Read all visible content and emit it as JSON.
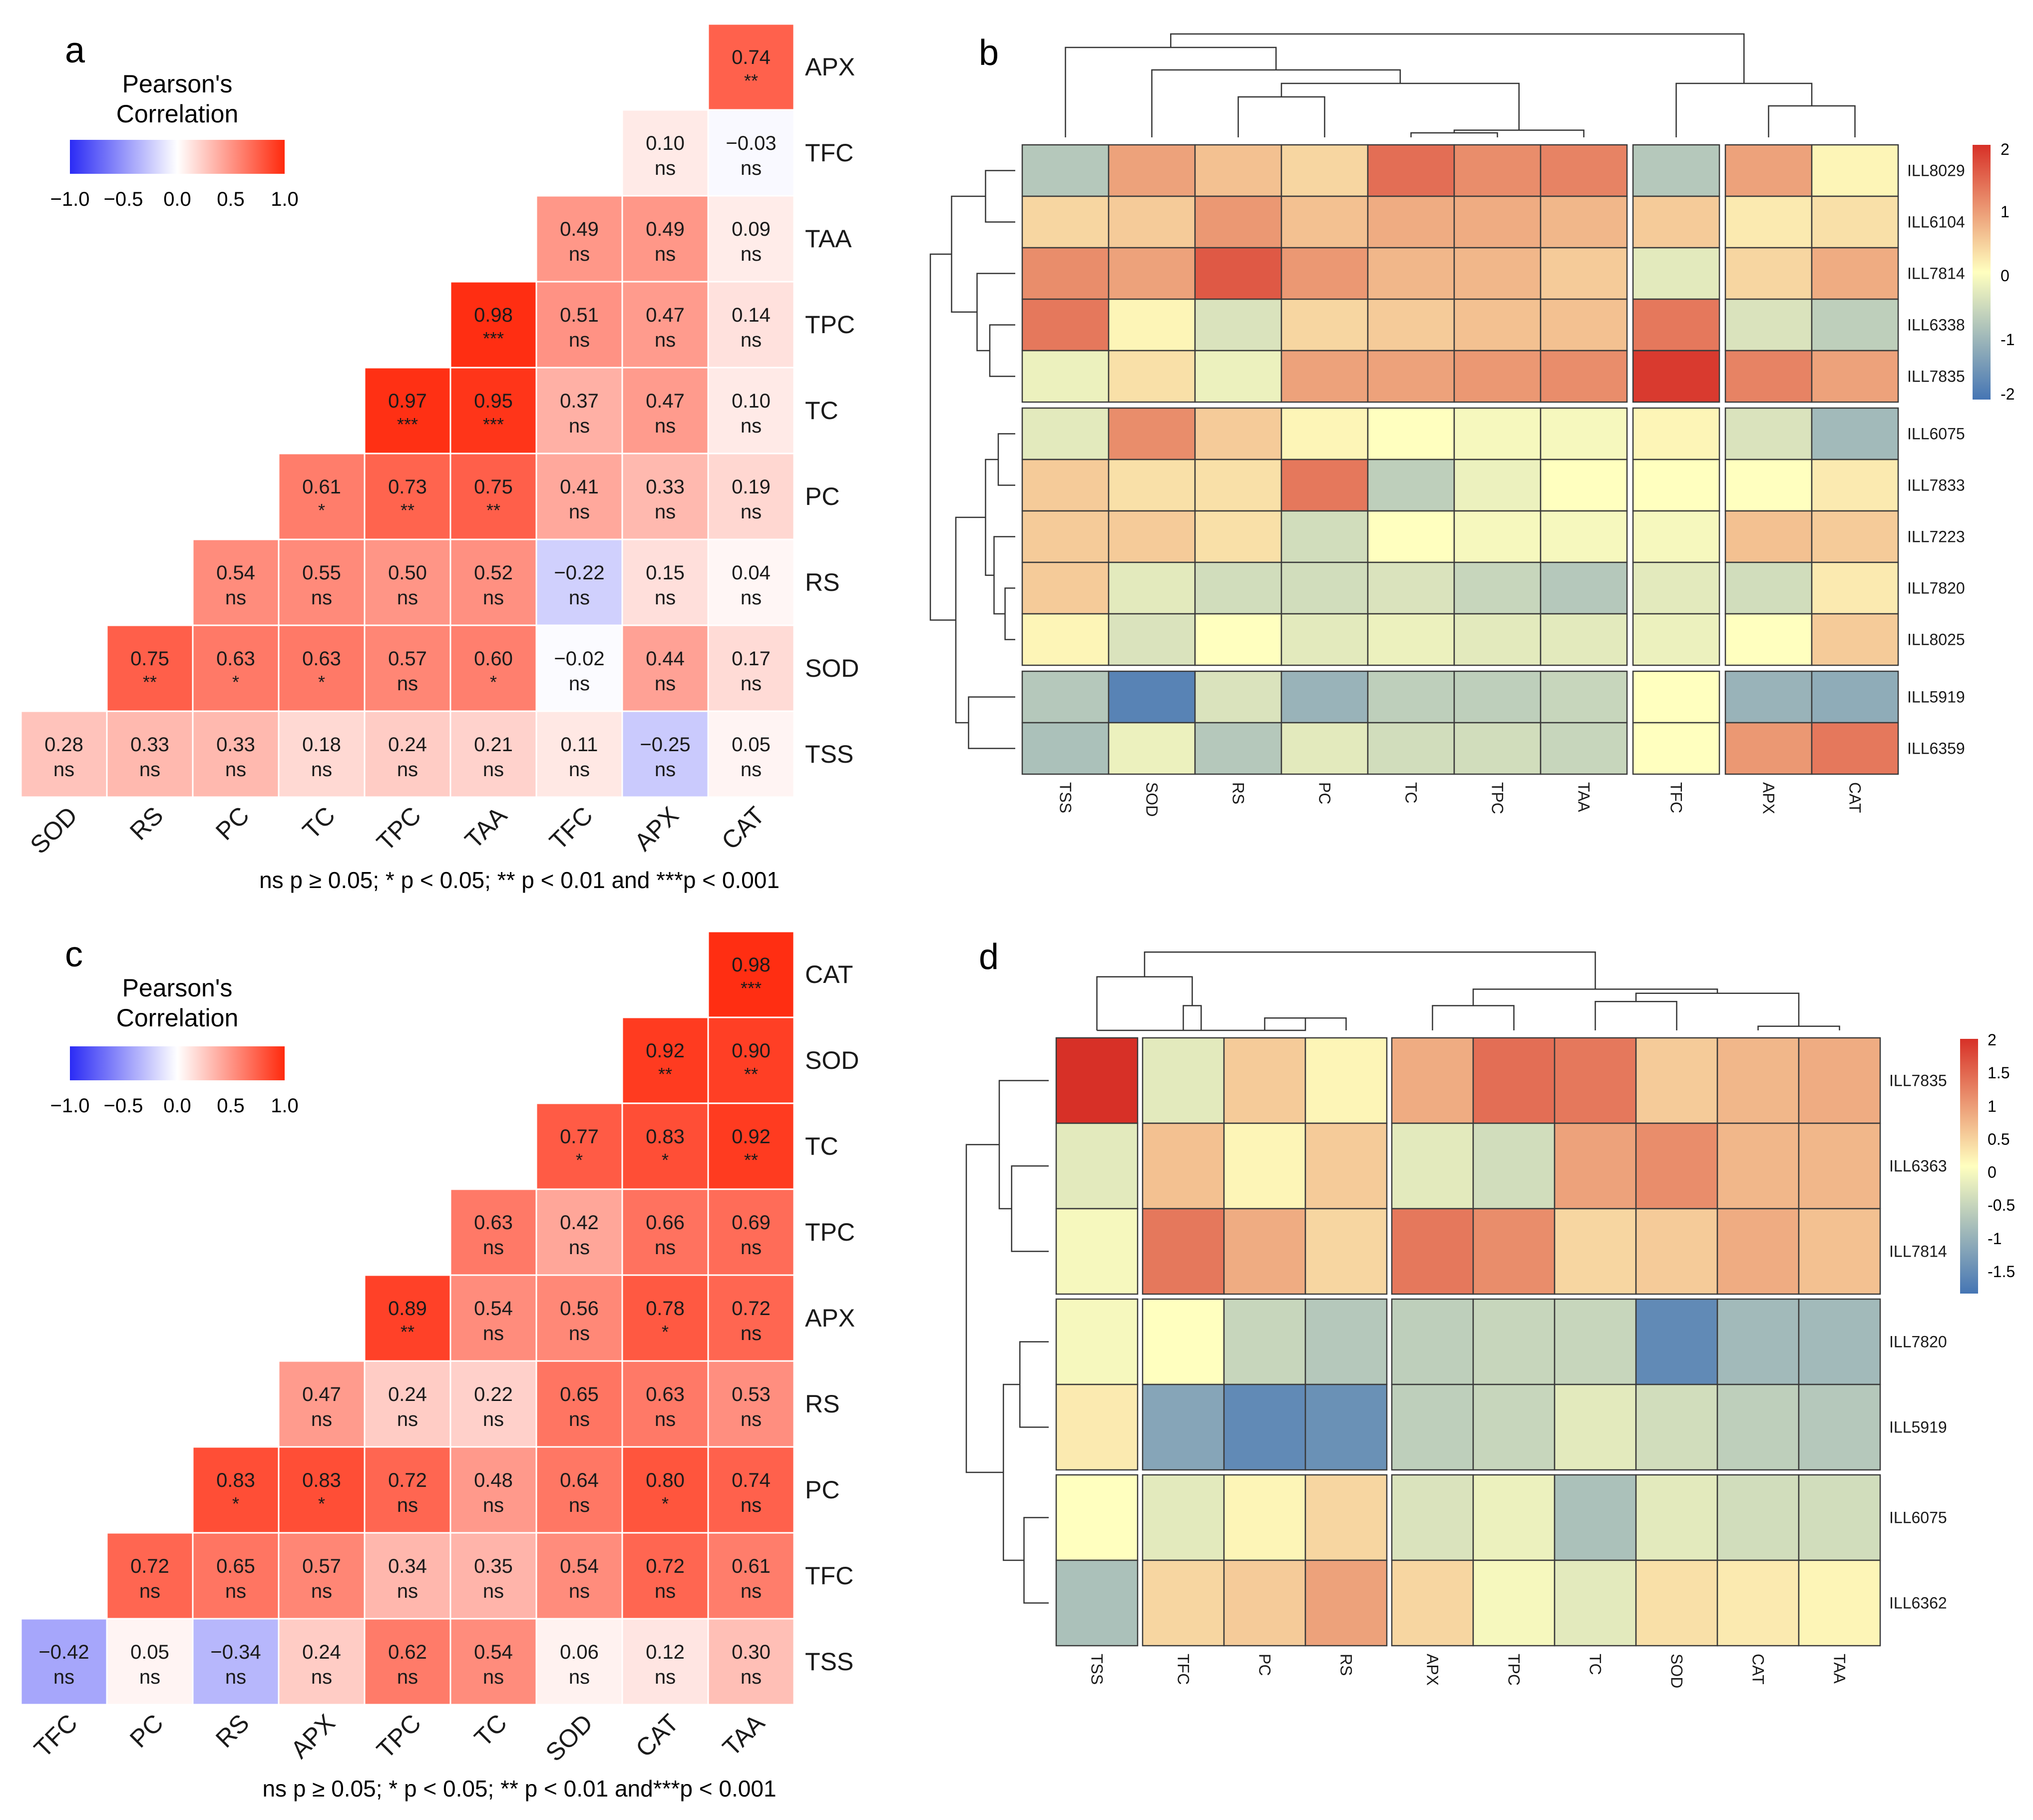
{
  "panels": {
    "a": {
      "label": "a",
      "legend_title": [
        "Pearson's",
        "Correlation"
      ],
      "legend_ticks": [
        "−1.0",
        "−0.5",
        "0.0",
        "0.5",
        "1.0"
      ],
      "footnote": "ns p ≥ 0.05; * p < 0.05; ** p < 0.01 and ***p < 0.001"
    },
    "b": {
      "label": "b",
      "scale_ticks": [
        "2",
        "1",
        "0",
        "-1",
        "-2"
      ]
    },
    "c": {
      "label": "c",
      "legend_title": [
        "Pearson's",
        "Correlation"
      ],
      "legend_ticks": [
        "−1.0",
        "−0.5",
        "0.0",
        "0.5",
        "1.0"
      ],
      "footnote": "ns p ≥ 0.05; * p < 0.05; ** p < 0.01 and***p < 0.001"
    },
    "d": {
      "label": "d",
      "scale_ticks": [
        "2",
        "1.5",
        "1",
        "0.5",
        "0",
        "-0.5",
        "-1",
        "-1.5"
      ]
    }
  },
  "colors": {
    "neg": "#2b2bf5",
    "mid": "#ffffff",
    "pos": "#ff2a0d",
    "hm_low": "#4575b4",
    "hm_mid": "#ffffbf",
    "hm_high": "#d73027",
    "grid": "#000000"
  },
  "chart_data": [
    {
      "type": "heatmap",
      "id": "a",
      "title": "Pearson's Correlation",
      "x_labels": [
        "SOD",
        "RS",
        "PC",
        "TC",
        "TPC",
        "TAA",
        "TFC",
        "APX",
        "CAT"
      ],
      "y_labels": [
        "APX",
        "TFC",
        "TAA",
        "TPC",
        "TC",
        "PC",
        "RS",
        "SOD",
        "TSS"
      ],
      "cells": [
        [
          null,
          null,
          null,
          null,
          null,
          null,
          null,
          null,
          {
            "r": 0.74,
            "s": "**"
          }
        ],
        [
          null,
          null,
          null,
          null,
          null,
          null,
          null,
          {
            "r": 0.1,
            "s": "ns"
          },
          {
            "r": -0.03,
            "s": "ns"
          }
        ],
        [
          null,
          null,
          null,
          null,
          null,
          null,
          {
            "r": 0.49,
            "s": "ns"
          },
          {
            "r": 0.49,
            "s": "ns"
          },
          {
            "r": 0.09,
            "s": "ns"
          }
        ],
        [
          null,
          null,
          null,
          null,
          null,
          {
            "r": 0.98,
            "s": "***"
          },
          {
            "r": 0.51,
            "s": "ns"
          },
          {
            "r": 0.47,
            "s": "ns"
          },
          {
            "r": 0.14,
            "s": "ns"
          }
        ],
        [
          null,
          null,
          null,
          null,
          {
            "r": 0.97,
            "s": "***"
          },
          {
            "r": 0.95,
            "s": "***"
          },
          {
            "r": 0.37,
            "s": "ns"
          },
          {
            "r": 0.47,
            "s": "ns"
          },
          {
            "r": 0.1,
            "s": "ns"
          }
        ],
        [
          null,
          null,
          null,
          {
            "r": 0.61,
            "s": "*"
          },
          {
            "r": 0.73,
            "s": "**"
          },
          {
            "r": 0.75,
            "s": "**"
          },
          {
            "r": 0.41,
            "s": "ns"
          },
          {
            "r": 0.33,
            "s": "ns"
          },
          {
            "r": 0.19,
            "s": "ns"
          }
        ],
        [
          null,
          null,
          {
            "r": 0.54,
            "s": "ns"
          },
          {
            "r": 0.55,
            "s": "ns"
          },
          {
            "r": 0.5,
            "s": "ns"
          },
          {
            "r": 0.52,
            "s": "ns"
          },
          {
            "r": -0.22,
            "s": "ns"
          },
          {
            "r": 0.15,
            "s": "ns"
          },
          {
            "r": 0.04,
            "s": "ns"
          }
        ],
        [
          null,
          {
            "r": 0.75,
            "s": "**"
          },
          {
            "r": 0.63,
            "s": "*"
          },
          {
            "r": 0.63,
            "s": "*"
          },
          {
            "r": 0.57,
            "s": "ns"
          },
          {
            "r": 0.6,
            "s": "*"
          },
          {
            "r": -0.02,
            "s": "ns"
          },
          {
            "r": 0.44,
            "s": "ns"
          },
          {
            "r": 0.17,
            "s": "ns"
          }
        ],
        [
          {
            "r": 0.28,
            "s": "ns"
          },
          {
            "r": 0.33,
            "s": "ns"
          },
          {
            "r": 0.33,
            "s": "ns"
          },
          {
            "r": 0.18,
            "s": "ns"
          },
          {
            "r": 0.24,
            "s": "ns"
          },
          {
            "r": 0.21,
            "s": "ns"
          },
          {
            "r": 0.11,
            "s": "ns"
          },
          {
            "r": -0.25,
            "s": "ns"
          },
          {
            "r": 0.05,
            "s": "ns"
          }
        ]
      ],
      "color_range": [
        -1.0,
        1.0
      ]
    },
    {
      "type": "heatmap",
      "id": "b",
      "x_labels": [
        "TSS",
        "SOD",
        "RS",
        "PC",
        "TC",
        "TPC",
        "TAA",
        "TFC",
        "APX",
        "CAT"
      ],
      "y_labels": [
        "ILL8029",
        "ILL6104",
        "ILL7814",
        "ILL6338",
        "ILL7835",
        "ILL6075",
        "ILL7833",
        "ILL7223",
        "ILL7820",
        "ILL8025",
        "ILL5919",
        "ILL6359"
      ],
      "values": [
        [
          -0.8,
          0.9,
          0.6,
          0.4,
          1.4,
          1.1,
          1.2,
          -0.8,
          0.9,
          0.1
        ],
        [
          0.4,
          0.5,
          1.0,
          0.6,
          0.8,
          0.8,
          0.7,
          0.5,
          0.2,
          0.3
        ],
        [
          1.1,
          0.9,
          1.6,
          1.0,
          0.7,
          0.7,
          0.5,
          -0.3,
          0.4,
          0.8
        ],
        [
          1.3,
          0.1,
          -0.4,
          0.4,
          0.5,
          0.6,
          0.6,
          1.3,
          -0.4,
          -0.7
        ],
        [
          -0.2,
          0.3,
          -0.2,
          0.9,
          0.9,
          1.0,
          1.1,
          1.9,
          1.2,
          0.9
        ],
        [
          -0.3,
          1.1,
          0.5,
          0.1,
          0.0,
          -0.1,
          -0.1,
          0.1,
          -0.4,
          -1.0
        ],
        [
          0.5,
          0.3,
          0.3,
          1.3,
          -0.7,
          -0.2,
          0.0,
          0.0,
          0.0,
          0.2
        ],
        [
          0.5,
          0.5,
          0.3,
          -0.5,
          0.0,
          -0.1,
          -0.1,
          -0.1,
          0.6,
          0.5
        ],
        [
          0.5,
          -0.3,
          -0.5,
          -0.5,
          -0.4,
          -0.6,
          -0.8,
          -0.3,
          -0.5,
          0.2
        ],
        [
          0.1,
          -0.4,
          0.0,
          -0.3,
          -0.2,
          -0.3,
          -0.3,
          -0.2,
          0.0,
          0.5
        ],
        [
          -0.8,
          -1.8,
          -0.4,
          -1.1,
          -0.7,
          -0.7,
          -0.6,
          0.0,
          -1.1,
          -1.2
        ],
        [
          -0.9,
          -0.2,
          -0.8,
          -0.3,
          -0.5,
          -0.5,
          -0.6,
          0.0,
          1.0,
          1.3
        ]
      ],
      "row_groups": [
        5,
        5,
        2
      ],
      "col_groups": [
        7,
        1,
        2
      ],
      "color_range": [
        -2,
        2
      ]
    },
    {
      "type": "heatmap",
      "id": "c",
      "title": "Pearson's Correlation",
      "x_labels": [
        "TFC",
        "PC",
        "RS",
        "APX",
        "TPC",
        "TC",
        "SOD",
        "CAT",
        "TAA"
      ],
      "y_labels": [
        "CAT",
        "SOD",
        "TC",
        "TPC",
        "APX",
        "RS",
        "PC",
        "TFC",
        "TSS"
      ],
      "cells": [
        [
          null,
          null,
          null,
          null,
          null,
          null,
          null,
          null,
          {
            "r": 0.98,
            "s": "***"
          }
        ],
        [
          null,
          null,
          null,
          null,
          null,
          null,
          null,
          {
            "r": 0.92,
            "s": "**"
          },
          {
            "r": 0.9,
            "s": "**"
          }
        ],
        [
          null,
          null,
          null,
          null,
          null,
          null,
          {
            "r": 0.77,
            "s": "*"
          },
          {
            "r": 0.83,
            "s": "*"
          },
          {
            "r": 0.92,
            "s": "**"
          }
        ],
        [
          null,
          null,
          null,
          null,
          null,
          {
            "r": 0.63,
            "s": "ns"
          },
          {
            "r": 0.42,
            "s": "ns"
          },
          {
            "r": 0.66,
            "s": "ns"
          },
          {
            "r": 0.69,
            "s": "ns"
          }
        ],
        [
          null,
          null,
          null,
          null,
          {
            "r": 0.89,
            "s": "**"
          },
          {
            "r": 0.54,
            "s": "ns"
          },
          {
            "r": 0.56,
            "s": "ns"
          },
          {
            "r": 0.78,
            "s": "*"
          },
          {
            "r": 0.72,
            "s": "ns"
          }
        ],
        [
          null,
          null,
          null,
          {
            "r": 0.47,
            "s": "ns"
          },
          {
            "r": 0.24,
            "s": "ns"
          },
          {
            "r": 0.22,
            "s": "ns"
          },
          {
            "r": 0.65,
            "s": "ns"
          },
          {
            "r": 0.63,
            "s": "ns"
          },
          {
            "r": 0.53,
            "s": "ns"
          }
        ],
        [
          null,
          null,
          {
            "r": 0.83,
            "s": "*"
          },
          {
            "r": 0.83,
            "s": "*"
          },
          {
            "r": 0.72,
            "s": "ns"
          },
          {
            "r": 0.48,
            "s": "ns"
          },
          {
            "r": 0.64,
            "s": "ns"
          },
          {
            "r": 0.8,
            "s": "*"
          },
          {
            "r": 0.74,
            "s": "ns"
          }
        ],
        [
          null,
          {
            "r": 0.72,
            "s": "ns"
          },
          {
            "r": 0.65,
            "s": "ns"
          },
          {
            "r": 0.57,
            "s": "ns"
          },
          {
            "r": 0.34,
            "s": "ns"
          },
          {
            "r": 0.35,
            "s": "ns"
          },
          {
            "r": 0.54,
            "s": "ns"
          },
          {
            "r": 0.72,
            "s": "ns"
          },
          {
            "r": 0.61,
            "s": "ns"
          }
        ],
        [
          {
            "r": -0.42,
            "s": "ns"
          },
          {
            "r": 0.05,
            "s": "ns"
          },
          {
            "r": -0.34,
            "s": "ns"
          },
          {
            "r": 0.24,
            "s": "ns"
          },
          {
            "r": 0.62,
            "s": "ns"
          },
          {
            "r": 0.54,
            "s": "ns"
          },
          {
            "r": 0.06,
            "s": "ns"
          },
          {
            "r": 0.12,
            "s": "ns"
          },
          {
            "r": 0.3,
            "s": "ns"
          }
        ]
      ],
      "color_range": [
        -1.0,
        1.0
      ]
    },
    {
      "type": "heatmap",
      "id": "d",
      "x_labels": [
        "TSS",
        "TFC",
        "PC",
        "RS",
        "APX",
        "TPC",
        "TC",
        "SOD",
        "CAT",
        "TAA"
      ],
      "y_labels": [
        "ILL7835",
        "ILL6363",
        "ILL7814",
        "ILL7820",
        "ILL5919",
        "ILL6075",
        "ILL6362"
      ],
      "values": [
        [
          2.0,
          -0.3,
          0.5,
          0.1,
          0.8,
          1.4,
          1.3,
          0.5,
          0.7,
          0.8
        ],
        [
          -0.3,
          0.6,
          0.1,
          0.5,
          -0.3,
          -0.5,
          0.9,
          1.1,
          0.7,
          0.7
        ],
        [
          -0.1,
          1.3,
          0.8,
          0.4,
          1.3,
          1.1,
          0.4,
          0.5,
          0.8,
          0.6
        ],
        [
          -0.1,
          0.0,
          -0.6,
          -0.8,
          -0.7,
          -0.6,
          -0.6,
          -1.7,
          -1.0,
          -1.0
        ],
        [
          0.2,
          -1.3,
          -1.7,
          -1.6,
          -0.7,
          -0.6,
          -0.3,
          -0.5,
          -0.7,
          -0.8
        ],
        [
          0.0,
          -0.3,
          0.1,
          0.4,
          -0.4,
          -0.2,
          -0.9,
          -0.3,
          -0.5,
          -0.5
        ],
        [
          -0.9,
          0.4,
          0.5,
          0.9,
          0.4,
          -0.1,
          -0.3,
          0.3,
          0.2,
          0.1
        ]
      ],
      "row_groups": [
        3,
        2,
        2
      ],
      "col_groups": [
        1,
        3,
        6
      ],
      "color_range": [
        -2,
        2
      ]
    }
  ]
}
